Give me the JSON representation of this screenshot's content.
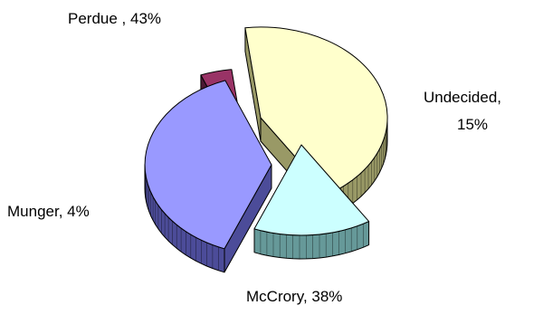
{
  "chart_data": {
    "type": "pie",
    "style": "3d-exploded",
    "title": "",
    "slices": [
      {
        "name": "Perdue",
        "value": 43,
        "label_lines": [
          "Perdue , 43%"
        ],
        "top_color": "#FFFFCC",
        "side_color": "#999966"
      },
      {
        "name": "Undecided",
        "value": 15,
        "label_lines": [
          "Undecided,",
          "15%"
        ],
        "top_color": "#CCFFFF",
        "side_color": "#669999"
      },
      {
        "name": "McCrory",
        "value": 38,
        "label_lines": [
          "McCrory, 38%"
        ],
        "top_color": "#9999FF",
        "side_color": "#4C4C99"
      },
      {
        "name": "Munger",
        "value": 4,
        "label_lines": [
          "Munger, 4%"
        ],
        "top_color": "#993366",
        "side_color": "#4C1933"
      }
    ],
    "legend": "none",
    "outline_color": "#000000"
  }
}
